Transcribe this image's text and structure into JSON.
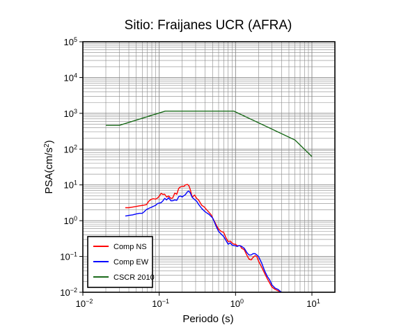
{
  "chart_data": {
    "type": "line",
    "title": "Sitio: Fraijanes UCR (AFRA)",
    "xlabel": "Periodo (s)",
    "ylabel_main": "PSA(cm/s",
    "ylabel_sup": "2",
    "ylabel_tail": ")",
    "x_scale": "log",
    "y_scale": "log",
    "xlim": [
      0.01,
      20
    ],
    "ylim": [
      0.01,
      100000
    ],
    "grid": true,
    "legend_position": "bottom-left",
    "x_ticks": [
      {
        "value": 0.01,
        "base": "10",
        "exp": "−2"
      },
      {
        "value": 0.1,
        "base": "10",
        "exp": "−1"
      },
      {
        "value": 1,
        "base": "10",
        "exp": "0"
      },
      {
        "value": 10,
        "base": "10",
        "exp": "1"
      }
    ],
    "y_ticks": [
      {
        "value": 0.01,
        "base": "10",
        "exp": "−2"
      },
      {
        "value": 0.1,
        "base": "10",
        "exp": "−1"
      },
      {
        "value": 1,
        "base": "10",
        "exp": "0"
      },
      {
        "value": 10,
        "base": "10",
        "exp": "1"
      },
      {
        "value": 100,
        "base": "10",
        "exp": "2"
      },
      {
        "value": 1000,
        "base": "10",
        "exp": "3"
      },
      {
        "value": 10000,
        "base": "10",
        "exp": "4"
      },
      {
        "value": 100000,
        "base": "10",
        "exp": "5"
      }
    ],
    "series": [
      {
        "name": "Comp NS",
        "color": "#ff0000",
        "points": [
          [
            0.036,
            2.3
          ],
          [
            0.04,
            2.3
          ],
          [
            0.045,
            2.4
          ],
          [
            0.05,
            2.5
          ],
          [
            0.055,
            2.6
          ],
          [
            0.062,
            2.7
          ],
          [
            0.068,
            2.8
          ],
          [
            0.073,
            3.5
          ],
          [
            0.078,
            3.9
          ],
          [
            0.083,
            4.1
          ],
          [
            0.09,
            4.0
          ],
          [
            0.095,
            4.3
          ],
          [
            0.1,
            4.8
          ],
          [
            0.106,
            5.8
          ],
          [
            0.112,
            5.4
          ],
          [
            0.118,
            5.5
          ],
          [
            0.125,
            4.6
          ],
          [
            0.133,
            4.9
          ],
          [
            0.142,
            4.2
          ],
          [
            0.15,
            4.3
          ],
          [
            0.16,
            5.9
          ],
          [
            0.17,
            5.5
          ],
          [
            0.18,
            8.0
          ],
          [
            0.19,
            8.8
          ],
          [
            0.2,
            9.2
          ],
          [
            0.21,
            9.0
          ],
          [
            0.22,
            10.0
          ],
          [
            0.235,
            10.3
          ],
          [
            0.245,
            9.5
          ],
          [
            0.255,
            7.5
          ],
          [
            0.27,
            4.5
          ],
          [
            0.29,
            5.2
          ],
          [
            0.31,
            4.2
          ],
          [
            0.33,
            3.7
          ],
          [
            0.36,
            2.7
          ],
          [
            0.39,
            2.4
          ],
          [
            0.42,
            2.0
          ],
          [
            0.45,
            1.7
          ],
          [
            0.48,
            1.45
          ],
          [
            0.5,
            1.2
          ],
          [
            0.53,
            0.95
          ],
          [
            0.56,
            0.75
          ],
          [
            0.6,
            0.58
          ],
          [
            0.65,
            0.5
          ],
          [
            0.7,
            0.47
          ],
          [
            0.75,
            0.33
          ],
          [
            0.8,
            0.26
          ],
          [
            0.85,
            0.27
          ],
          [
            0.9,
            0.24
          ],
          [
            0.95,
            0.22
          ],
          [
            1.0,
            0.22
          ],
          [
            1.05,
            0.2
          ],
          [
            1.1,
            0.2
          ],
          [
            1.15,
            0.2
          ],
          [
            1.2,
            0.17
          ],
          [
            1.3,
            0.155
          ],
          [
            1.4,
            0.11
          ],
          [
            1.5,
            0.085
          ],
          [
            1.6,
            0.08
          ],
          [
            1.7,
            0.095
          ],
          [
            1.8,
            0.105
          ],
          [
            1.9,
            0.1
          ],
          [
            2.0,
            0.075
          ],
          [
            2.2,
            0.05
          ],
          [
            2.4,
            0.034
          ],
          [
            2.6,
            0.024
          ],
          [
            2.8,
            0.018
          ],
          [
            3.0,
            0.014
          ],
          [
            3.3,
            0.012
          ],
          [
            3.6,
            0.011
          ],
          [
            4.0,
            0.01
          ]
        ]
      },
      {
        "name": "Comp EW",
        "color": "#0000ff",
        "points": [
          [
            0.036,
            1.35
          ],
          [
            0.04,
            1.4
          ],
          [
            0.045,
            1.45
          ],
          [
            0.05,
            1.55
          ],
          [
            0.055,
            1.6
          ],
          [
            0.06,
            1.6
          ],
          [
            0.064,
            1.8
          ],
          [
            0.068,
            2.05
          ],
          [
            0.073,
            2.2
          ],
          [
            0.078,
            2.35
          ],
          [
            0.083,
            2.5
          ],
          [
            0.09,
            2.7
          ],
          [
            0.095,
            3.0
          ],
          [
            0.1,
            3.1
          ],
          [
            0.106,
            3.2
          ],
          [
            0.112,
            3.6
          ],
          [
            0.118,
            4.2
          ],
          [
            0.125,
            3.8
          ],
          [
            0.133,
            4.4
          ],
          [
            0.142,
            3.6
          ],
          [
            0.15,
            3.6
          ],
          [
            0.16,
            3.8
          ],
          [
            0.17,
            3.7
          ],
          [
            0.18,
            4.7
          ],
          [
            0.19,
            4.9
          ],
          [
            0.2,
            4.6
          ],
          [
            0.21,
            5.0
          ],
          [
            0.22,
            5.3
          ],
          [
            0.235,
            6.5
          ],
          [
            0.245,
            6.7
          ],
          [
            0.255,
            6.0
          ],
          [
            0.27,
            4.5
          ],
          [
            0.29,
            3.9
          ],
          [
            0.31,
            3.5
          ],
          [
            0.33,
            2.8
          ],
          [
            0.36,
            2.2
          ],
          [
            0.39,
            1.85
          ],
          [
            0.42,
            1.65
          ],
          [
            0.45,
            1.5
          ],
          [
            0.48,
            1.3
          ],
          [
            0.5,
            1.2
          ],
          [
            0.53,
            0.9
          ],
          [
            0.56,
            0.68
          ],
          [
            0.6,
            0.5
          ],
          [
            0.65,
            0.42
          ],
          [
            0.7,
            0.36
          ],
          [
            0.75,
            0.28
          ],
          [
            0.8,
            0.22
          ],
          [
            0.85,
            0.24
          ],
          [
            0.9,
            0.21
          ],
          [
            0.95,
            0.2
          ],
          [
            1.0,
            0.2
          ],
          [
            1.05,
            0.19
          ],
          [
            1.1,
            0.2
          ],
          [
            1.15,
            0.2
          ],
          [
            1.2,
            0.19
          ],
          [
            1.3,
            0.17
          ],
          [
            1.4,
            0.13
          ],
          [
            1.5,
            0.11
          ],
          [
            1.6,
            0.11
          ],
          [
            1.7,
            0.12
          ],
          [
            1.8,
            0.12
          ],
          [
            1.9,
            0.11
          ],
          [
            2.0,
            0.1
          ],
          [
            2.2,
            0.065
          ],
          [
            2.4,
            0.04
          ],
          [
            2.6,
            0.028
          ],
          [
            2.8,
            0.022
          ],
          [
            3.0,
            0.016
          ],
          [
            3.3,
            0.013
          ],
          [
            3.6,
            0.012
          ],
          [
            4.0,
            0.01
          ]
        ]
      },
      {
        "name": "CSCR 2010",
        "color": "#1a6a1a",
        "points": [
          [
            0.02,
            460
          ],
          [
            0.03,
            460
          ],
          [
            0.12,
            1150
          ],
          [
            0.95,
            1150
          ],
          [
            6.0,
            180
          ],
          [
            10.0,
            62
          ]
        ]
      }
    ]
  }
}
